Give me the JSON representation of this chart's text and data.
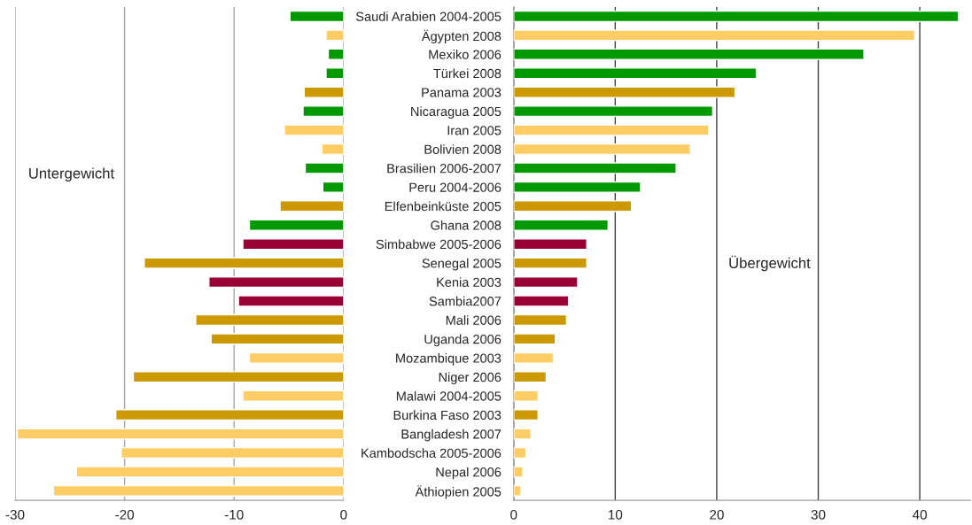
{
  "chart_data": [
    {
      "type": "bar",
      "orientation": "horizontal",
      "tick_labels": "x",
      "grid": "x",
      "values": [
        -4.9,
        -1.6,
        -1.4,
        -1.6,
        -3.6,
        -3.7,
        -5.4,
        -2.0,
        -3.5,
        -1.9,
        -5.8,
        -8.6,
        -9.2,
        -18.2,
        -12.3,
        -9.6,
        -13.5,
        -12.1,
        -8.6,
        -19.2,
        -9.2,
        -20.8,
        -29.8,
        -20.3,
        -24.4,
        -26.5
      ],
      "colors": [
        "#009900",
        "#ffcc66",
        "#009900",
        "#009900",
        "#cc9900",
        "#009900",
        "#ffcc66",
        "#ffcc66",
        "#009900",
        "#009900",
        "#cc9900",
        "#009900",
        "#990033",
        "#cc9900",
        "#990033",
        "#990033",
        "#cc9900",
        "#cc9900",
        "#ffcc66",
        "#cc9900",
        "#ffcc66",
        "#cc9900",
        "#ffcc66",
        "#ffcc66",
        "#ffcc66",
        "#ffcc66"
      ],
      "xlim": [
        -30,
        0
      ],
      "xticks": [
        -30,
        -20,
        -10,
        0
      ],
      "annotations": [
        "Untergewicht"
      ]
    },
    {
      "type": "bar",
      "orientation": "horizontal",
      "grid": "x",
      "categories": [
        "Saudi Arabien 2004-2005",
        "Ägypten 2008",
        "Mexiko 2006",
        "Türkei 2008",
        "Panama 2003",
        "Nicaragua 2005",
        "Iran 2005",
        "Bolivien 2008",
        "Brasilien 2006-2007",
        "Peru 2004-2006",
        "Elfenbeinküste 2005",
        "Ghana 2008",
        "Simbabwe 2005-2006",
        "Senegal 2005",
        "Kenia 2003",
        "Sambia2007",
        "Mali 2006",
        "Uganda 2006",
        "Mozambique 2003",
        "Niger 2006",
        "Malawi 2004-2005",
        "Burkina Faso 2003",
        "Bangladesh 2007",
        "Kambodscha 2005-2006",
        "Nepal 2006",
        "Äthiopien 2005"
      ],
      "values": [
        43.8,
        39.5,
        34.5,
        23.9,
        21.8,
        19.6,
        19.2,
        17.4,
        16.0,
        12.5,
        11.6,
        9.3,
        7.2,
        7.2,
        6.3,
        5.4,
        5.2,
        4.1,
        3.9,
        3.2,
        2.4,
        2.4,
        1.7,
        1.2,
        0.9,
        0.7
      ],
      "colors": [
        "#009900",
        "#ffcc66",
        "#009900",
        "#009900",
        "#cc9900",
        "#009900",
        "#ffcc66",
        "#ffcc66",
        "#009900",
        "#009900",
        "#cc9900",
        "#009900",
        "#990033",
        "#cc9900",
        "#990033",
        "#990033",
        "#cc9900",
        "#cc9900",
        "#ffcc66",
        "#cc9900",
        "#ffcc66",
        "#cc9900",
        "#ffcc66",
        "#ffcc66",
        "#ffcc66",
        "#ffcc66"
      ],
      "xlim": [
        0,
        45
      ],
      "xticks": [
        0,
        10,
        20,
        30,
        40
      ],
      "annotations": [
        "Übergewicht"
      ]
    }
  ]
}
